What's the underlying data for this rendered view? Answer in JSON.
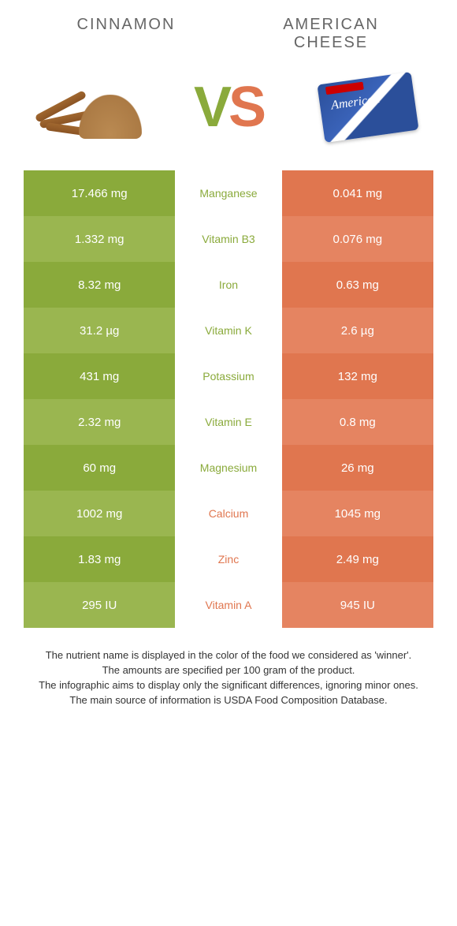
{
  "left": {
    "title": "Cinnamon"
  },
  "right": {
    "title": "American Cheese"
  },
  "vs": {
    "v": "V",
    "s": "S"
  },
  "colors": {
    "green": "#8aaa3b",
    "green_alt": "#9ab650",
    "orange": "#e0764f",
    "orange_alt": "#e58461"
  },
  "rows": [
    {
      "name": "Manganese",
      "left": "17.466 mg",
      "right": "0.041 mg",
      "winner": "left"
    },
    {
      "name": "Vitamin B3",
      "left": "1.332 mg",
      "right": "0.076 mg",
      "winner": "left"
    },
    {
      "name": "Iron",
      "left": "8.32 mg",
      "right": "0.63 mg",
      "winner": "left"
    },
    {
      "name": "Vitamin K",
      "left": "31.2 µg",
      "right": "2.6 µg",
      "winner": "left"
    },
    {
      "name": "Potassium",
      "left": "431 mg",
      "right": "132 mg",
      "winner": "left"
    },
    {
      "name": "Vitamin E",
      "left": "2.32 mg",
      "right": "0.8 mg",
      "winner": "left"
    },
    {
      "name": "Magnesium",
      "left": "60 mg",
      "right": "26 mg",
      "winner": "left"
    },
    {
      "name": "Calcium",
      "left": "1002 mg",
      "right": "1045 mg",
      "winner": "right"
    },
    {
      "name": "Zinc",
      "left": "1.83 mg",
      "right": "2.49 mg",
      "winner": "right"
    },
    {
      "name": "Vitamin A",
      "left": "295 IU",
      "right": "945 IU",
      "winner": "right"
    }
  ],
  "footer": {
    "l1": "The nutrient name is displayed in the color of the food we considered as 'winner'.",
    "l2": "The amounts are specified per 100 gram of the product.",
    "l3": "The infographic aims to display only the significant differences, ignoring minor ones.",
    "l4": "The main source of information is USDA Food Composition Database."
  },
  "cheese_box": {
    "label": "American"
  }
}
